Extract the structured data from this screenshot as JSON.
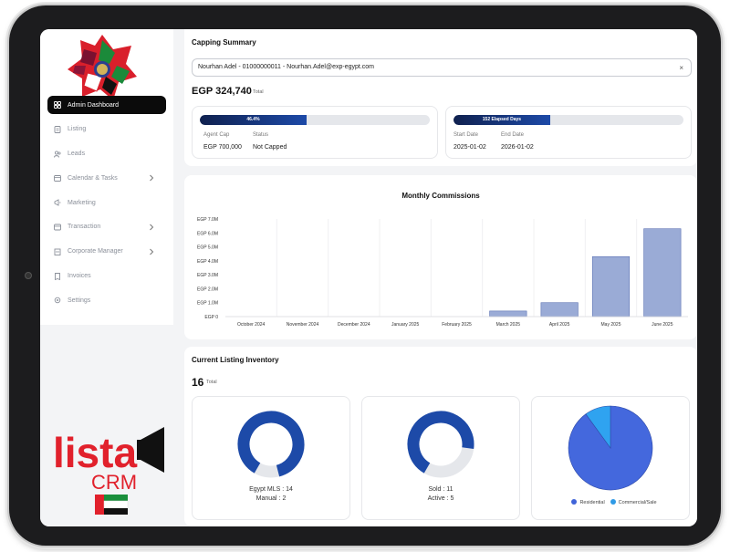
{
  "sidebar": {
    "items": [
      {
        "label": "Admin Dashboard",
        "icon": "dashboard-icon",
        "active": true
      },
      {
        "label": "Listing",
        "icon": "listing-icon"
      },
      {
        "label": "Leads",
        "icon": "leads-icon"
      },
      {
        "label": "Calendar & Tasks",
        "icon": "calendar-icon",
        "has_submenu": true
      },
      {
        "label": "Marketing",
        "icon": "marketing-icon"
      },
      {
        "label": "Transaction",
        "icon": "transaction-icon",
        "has_submenu": true
      },
      {
        "label": "Corporate Manager",
        "icon": "corporate-icon",
        "has_submenu": true
      },
      {
        "label": "Invoices",
        "icon": "invoice-icon"
      },
      {
        "label": "Settings",
        "icon": "settings-icon"
      }
    ],
    "logo": {
      "word": "lista",
      "sub": "CRM",
      "colors": {
        "primary": "#e1212c",
        "dark": "#111111",
        "green": "#1a8f3c"
      }
    }
  },
  "capping": {
    "title": "Capping Summary",
    "selected_agent": "Nourhan Adel - 01000000011 - Nourhan.Adel@exp-egypt.com",
    "clear_label": "×",
    "total_amount": "EGP 324,740",
    "total_label": "Total",
    "cap_progress_label": "46.4%",
    "cap_progress": 0.464,
    "agent_cap_label": "Agent Cap",
    "agent_cap_value": "EGP 700,000",
    "status_label": "Status",
    "status_value": "Not Capped",
    "days_progress_label": "152 Elapsed Days",
    "days_progress": 0.42,
    "start_date_label": "Start Date",
    "start_date_value": "2025-01-02",
    "end_date_label": "End Date",
    "end_date_value": "2026-01-02"
  },
  "chart_data": {
    "type": "bar",
    "title": "Monthly Commissions",
    "categories": [
      "October 2024",
      "November 2024",
      "December 2024",
      "January 2025",
      "February 2025",
      "March 2025",
      "April 2025",
      "May 2025",
      "June 2025"
    ],
    "values": [
      0,
      0,
      0,
      0,
      0,
      400000,
      1000000,
      4300000,
      6300000
    ],
    "y_ticks": [
      "EGP 0",
      "EGP 1.0M",
      "EGP 2.0M",
      "EGP 3.0M",
      "EGP 4.0M",
      "EGP 5.0M",
      "EGP 6.0M",
      "EGP 7.0M"
    ],
    "ylim": [
      0,
      7000000
    ],
    "grid": true,
    "bar_color": "#9aabd6"
  },
  "inventory": {
    "title": "Current Listing Inventory",
    "total": "16",
    "total_label": "Total",
    "card1": {
      "line1": "Egypt MLS : 14",
      "line2": "Manual : 2",
      "fraction": 0.875
    },
    "card2": {
      "line1": "Sold : 11",
      "line2": "Active : 5",
      "fraction": 0.6875
    },
    "card3": {
      "legend": [
        {
          "label": "Residential",
          "color": "#3f63d8"
        },
        {
          "label": "Commercial/Sale",
          "color": "#2f9ae6"
        }
      ],
      "slices": [
        0.9,
        0.1
      ]
    },
    "colors": {
      "donut": "#1d4aa8",
      "donut_rest": "#e5e7eb",
      "pie_main": "#4468dd",
      "pie_small": "#2fa3f0"
    }
  }
}
